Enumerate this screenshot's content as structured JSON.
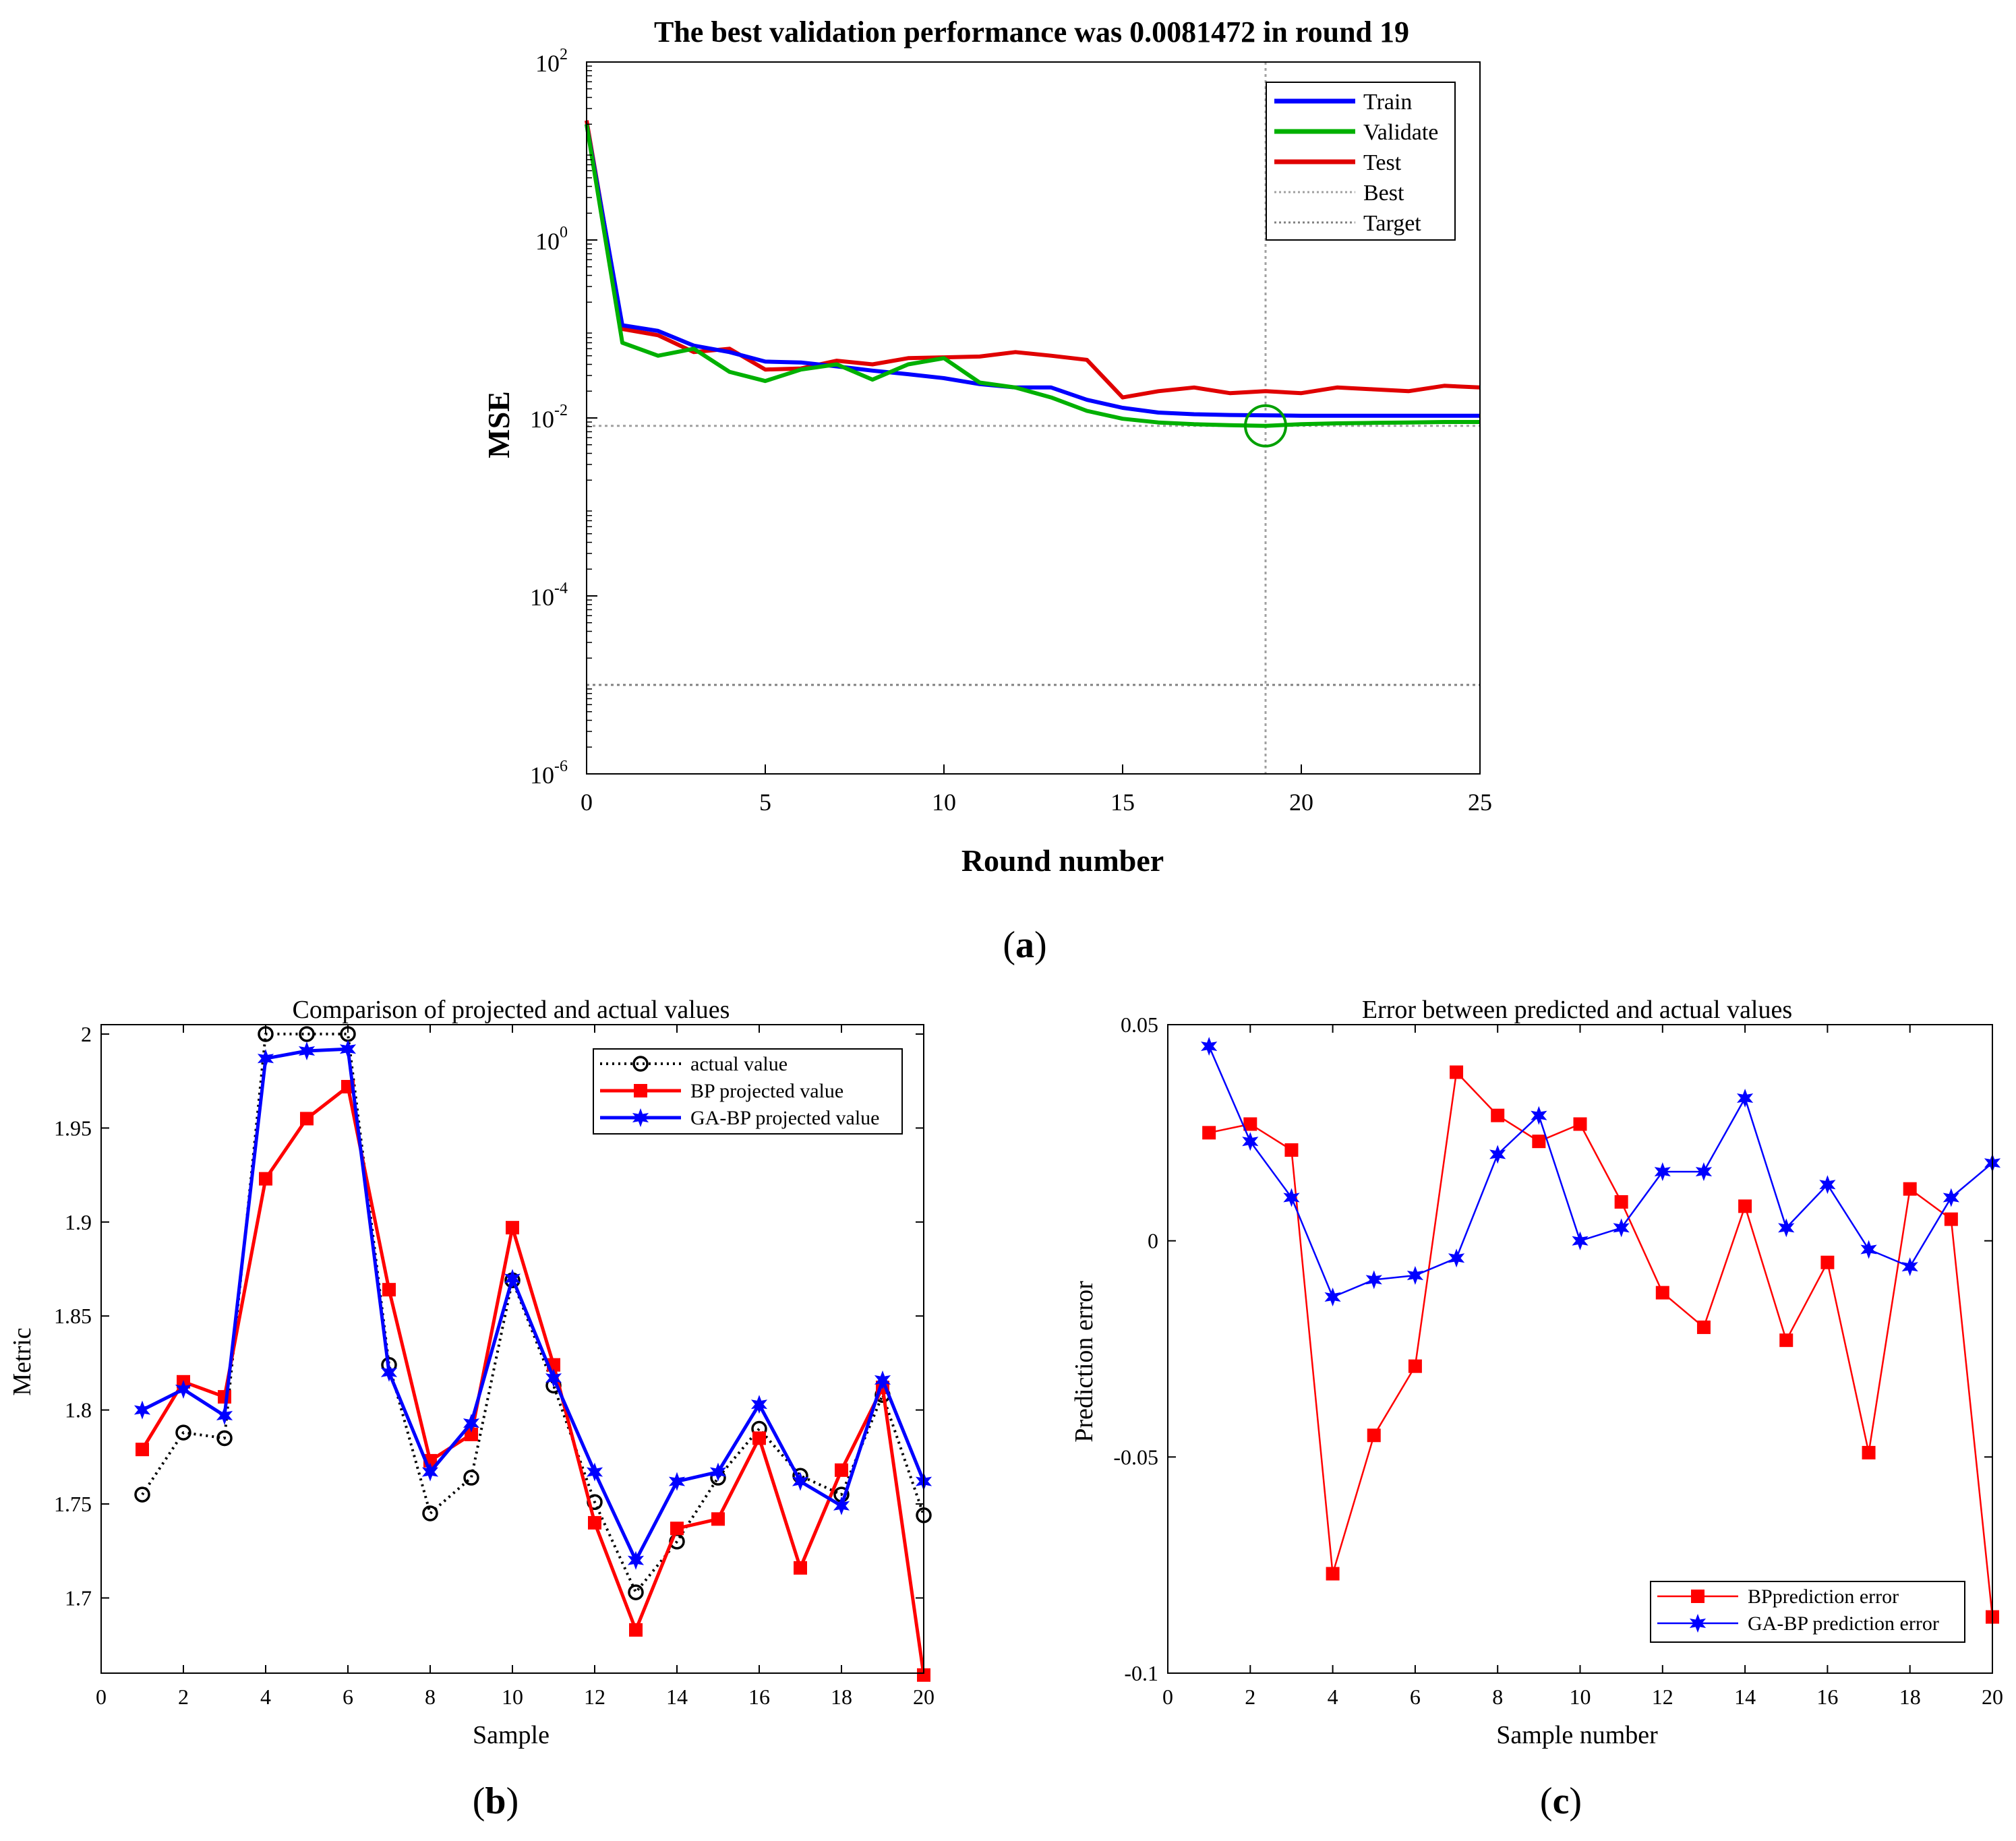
{
  "figure": {
    "panels": [
      {
        "caption_open": "(",
        "caption_letter": "a",
        "caption_close": ")"
      },
      {
        "caption_open": "(",
        "caption_letter": "b",
        "caption_close": ")"
      },
      {
        "caption_open": "(",
        "caption_letter": "c",
        "caption_close": ")"
      }
    ]
  },
  "chart_data": [
    {
      "type": "line",
      "yscale": "log",
      "title": "The best validation performance was 0.0081472 in round 19",
      "xlabel": "Round number",
      "ylabel": "MSE",
      "xlim": [
        0,
        25
      ],
      "ylim": [
        1e-06,
        100
      ],
      "xticks": [
        0,
        5,
        10,
        15,
        20,
        25
      ],
      "xtick_labels": [
        "0",
        "5",
        "10",
        "15",
        "20",
        "25"
      ],
      "yticks": [
        1e-06,
        0.0001,
        0.01,
        1,
        100
      ],
      "ytick_labels": [
        {
          "base": "10",
          "exp": "-6"
        },
        {
          "base": "10",
          "exp": "-4"
        },
        {
          "base": "10",
          "exp": "-2"
        },
        {
          "base": "10",
          "exp": "0"
        },
        {
          "base": "10",
          "exp": "2"
        }
      ],
      "x": [
        0,
        1,
        2,
        3,
        4,
        5,
        6,
        7,
        8,
        9,
        10,
        11,
        12,
        13,
        14,
        15,
        16,
        17,
        18,
        19,
        20,
        21,
        22,
        23,
        24,
        25
      ],
      "series": [
        {
          "name": "Train",
          "color": "#0000ff",
          "values": [
            20,
            0.11,
            0.095,
            0.065,
            0.055,
            0.043,
            0.042,
            0.038,
            0.034,
            0.031,
            0.028,
            0.024,
            0.022,
            0.022,
            0.016,
            0.013,
            0.0115,
            0.011,
            0.0108,
            0.0107,
            0.0106,
            0.0106,
            0.0106,
            0.0106,
            0.0106,
            0.0106
          ]
        },
        {
          "name": "Validate",
          "color": "#00b000",
          "values": [
            20,
            0.07,
            0.05,
            0.06,
            0.033,
            0.026,
            0.035,
            0.04,
            0.027,
            0.04,
            0.047,
            0.025,
            0.022,
            0.017,
            0.012,
            0.0098,
            0.0089,
            0.0085,
            0.0083,
            0.0081472,
            0.0085,
            0.0087,
            0.0088,
            0.0089,
            0.009,
            0.009
          ]
        },
        {
          "name": "Test",
          "color": "#e00000",
          "values": [
            22,
            0.1,
            0.085,
            0.055,
            0.06,
            0.035,
            0.036,
            0.044,
            0.04,
            0.047,
            0.048,
            0.049,
            0.055,
            0.05,
            0.045,
            0.017,
            0.02,
            0.022,
            0.019,
            0.02,
            0.019,
            0.022,
            0.021,
            0.02,
            0.023,
            0.022
          ]
        }
      ],
      "reference_lines": [
        {
          "name": "Best",
          "type": "vertical",
          "x": 19,
          "color": "#a0a0a0"
        },
        {
          "name": "Best",
          "type": "horizontal",
          "y": 0.0081472,
          "color": "#a0a0a0"
        },
        {
          "name": "Target",
          "type": "horizontal",
          "y": 1e-05,
          "color": "#808080"
        }
      ],
      "best_marker": {
        "x": 19,
        "y": 0.0081472,
        "color": "#00a000"
      },
      "legend": {
        "position": "top-right",
        "entries": [
          "Train",
          "Validate",
          "Test",
          "Best",
          "Target"
        ]
      }
    },
    {
      "type": "line",
      "title": "Comparison of projected and actual values",
      "xlabel": "Sample",
      "ylabel": "Metric",
      "xlim": [
        0,
        20
      ],
      "ylim": [
        1.66,
        2.005
      ],
      "xticks": [
        0,
        2,
        4,
        6,
        8,
        10,
        12,
        14,
        16,
        18,
        20
      ],
      "xtick_labels": [
        "0",
        "2",
        "4",
        "6",
        "8",
        "10",
        "12",
        "14",
        "16",
        "18",
        "20"
      ],
      "yticks": [
        1.7,
        1.75,
        1.8,
        1.85,
        1.9,
        1.95,
        2
      ],
      "ytick_labels": [
        "1.7",
        "1.75",
        "1.8",
        "1.85",
        "1.9",
        "1.95",
        "2"
      ],
      "x": [
        1,
        2,
        3,
        4,
        5,
        6,
        7,
        8,
        9,
        10,
        11,
        12,
        13,
        14,
        15,
        16,
        17,
        18,
        19,
        20
      ],
      "series": [
        {
          "name": "actual value",
          "color": "#000000",
          "style": "dotted",
          "marker": "circle",
          "values": [
            1.755,
            1.788,
            1.785,
            2.0,
            2.0,
            2.0,
            1.824,
            1.745,
            1.764,
            1.869,
            1.813,
            1.751,
            1.703,
            1.73,
            1.764,
            1.79,
            1.765,
            1.755,
            1.808,
            1.744
          ]
        },
        {
          "name": "BP projected value",
          "color": "#ff0000",
          "style": "solid",
          "marker": "square",
          "values": [
            1.779,
            1.815,
            1.807,
            1.923,
            1.955,
            1.972,
            1.864,
            1.773,
            1.787,
            1.897,
            1.824,
            1.74,
            1.683,
            1.737,
            1.742,
            1.785,
            1.716,
            1.768,
            1.812,
            1.659
          ]
        },
        {
          "name": "GA-BP projected value",
          "color": "#0000ff",
          "style": "solid",
          "marker": "star",
          "values": [
            1.8,
            1.811,
            1.797,
            1.987,
            1.991,
            1.992,
            1.82,
            1.767,
            1.793,
            1.87,
            1.817,
            1.767,
            1.72,
            1.762,
            1.767,
            1.803,
            1.762,
            1.749,
            1.816,
            1.762
          ]
        }
      ],
      "legend": {
        "position": "top-right",
        "entries": [
          "actual value",
          "BP projected value",
          "GA-BP projected value"
        ]
      }
    },
    {
      "type": "line",
      "title": "Error between predicted and actual values",
      "xlabel": "Sample number",
      "ylabel": "Prediction error",
      "xlim": [
        0,
        20
      ],
      "ylim": [
        -0.1,
        0.05
      ],
      "xticks": [
        0,
        2,
        4,
        6,
        8,
        10,
        12,
        14,
        16,
        18,
        20
      ],
      "xtick_labels": [
        "0",
        "2",
        "4",
        "6",
        "8",
        "10",
        "12",
        "14",
        "16",
        "18",
        "20"
      ],
      "yticks": [
        -0.1,
        -0.05,
        0,
        0.05
      ],
      "ytick_labels": [
        "-0.1",
        "-0.05",
        "0",
        "0.05"
      ],
      "x": [
        1,
        2,
        3,
        4,
        5,
        6,
        7,
        8,
        9,
        10,
        11,
        12,
        13,
        14,
        15,
        16,
        17,
        18,
        19,
        20
      ],
      "series": [
        {
          "name": "BPprediction error",
          "color": "#ff0000",
          "marker": "square",
          "values": [
            0.025,
            0.027,
            0.021,
            -0.077,
            -0.045,
            -0.029,
            0.039,
            0.029,
            0.023,
            0.027,
            0.009,
            -0.012,
            -0.02,
            0.008,
            -0.023,
            -0.005,
            -0.049,
            0.012,
            0.005,
            -0.087
          ]
        },
        {
          "name": "GA-BP prediction error",
          "color": "#0000ff",
          "marker": "star",
          "values": [
            0.045,
            0.023,
            0.01,
            -0.013,
            -0.009,
            -0.008,
            -0.004,
            0.02,
            0.029,
            0.0,
            0.003,
            0.016,
            0.016,
            0.033,
            0.003,
            0.013,
            -0.002,
            -0.006,
            0.01,
            0.018
          ]
        }
      ],
      "legend": {
        "position": "bottom-right",
        "entries": [
          "BPprediction error",
          "GA-BP prediction error"
        ]
      }
    }
  ]
}
